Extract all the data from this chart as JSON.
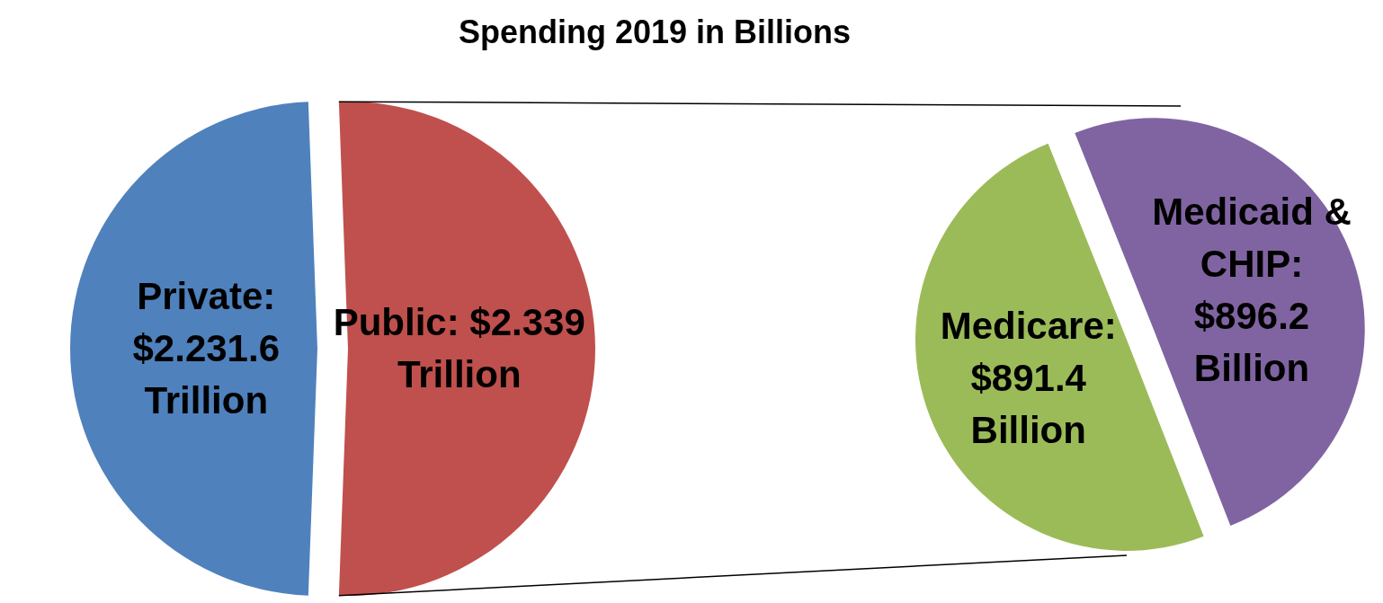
{
  "chart_data": [
    {
      "type": "pie",
      "title": "Spending 2019 in Billions",
      "categories": [
        "Private",
        "Public"
      ],
      "values": [
        2.2316,
        2.339
      ],
      "value_labels": [
        ": $2.231.6 Trillion",
        ": $2.339 Trillion"
      ],
      "colors": [
        "#4f81bd",
        "#c0504d"
      ]
    },
    {
      "type": "pie",
      "categories": [
        "Medicare",
        "Medicaid & CHIP"
      ],
      "values": [
        891.4,
        896.2
      ],
      "value_labels": [
        ": $891.4 Billion",
        ": $896.2 Billion"
      ],
      "colors": [
        "#9bbb59",
        "#8064a2"
      ]
    }
  ]
}
